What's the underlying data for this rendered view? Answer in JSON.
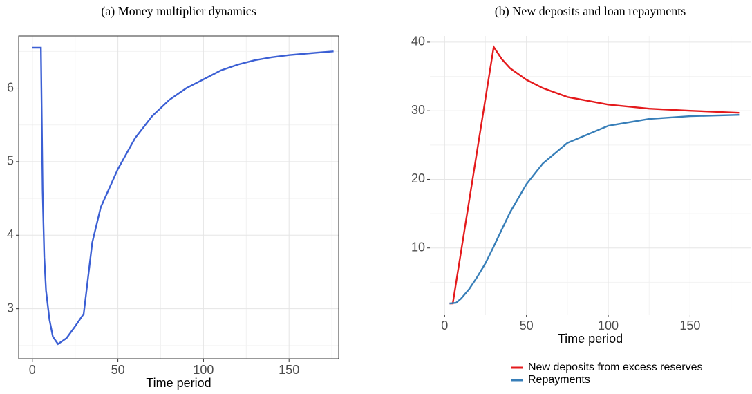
{
  "chart_data": [
    {
      "type": "line",
      "title": "(a) Money multiplier dynamics",
      "x_label": "Time period",
      "xlim": [
        -8,
        179
      ],
      "ylim": [
        2.32,
        6.71
      ],
      "xticks": [
        0,
        50,
        100,
        150
      ],
      "yticks": [
        3,
        4,
        5,
        6
      ],
      "x_minor_ticks": [
        25,
        75,
        125,
        175
      ],
      "y_minor_ticks": [
        2.5,
        3.5,
        4.5,
        5.5,
        6.5
      ],
      "grid": true,
      "frame": true,
      "series": [
        {
          "color": "#3b5fd4",
          "x": [
            0,
            5,
            6,
            7,
            8,
            10,
            12,
            15,
            20,
            25,
            30,
            35,
            40,
            50,
            60,
            70,
            80,
            90,
            100,
            110,
            120,
            130,
            140,
            150,
            160,
            170,
            176
          ],
          "values": [
            6.55,
            6.55,
            4.6,
            3.7,
            3.25,
            2.85,
            2.62,
            2.52,
            2.6,
            2.76,
            2.93,
            3.9,
            4.38,
            4.9,
            5.32,
            5.62,
            5.84,
            6.0,
            6.12,
            6.24,
            6.32,
            6.38,
            6.42,
            6.45,
            6.47,
            6.49,
            6.5
          ]
        }
      ]
    },
    {
      "type": "line",
      "title": "(b) New deposits and loan repayments",
      "x_label": "Time period",
      "xlim": [
        -9,
        187
      ],
      "ylim": [
        0.3,
        40.9
      ],
      "xticks": [
        0,
        50,
        100,
        150
      ],
      "yticks": [
        10,
        20,
        30,
        40
      ],
      "x_minor_ticks": [
        25,
        75,
        125,
        175
      ],
      "y_minor_ticks": [
        5,
        15,
        25,
        35
      ],
      "grid": true,
      "frame": false,
      "legend": "bottom",
      "series": [
        {
          "name": "New deposits from excess reserves",
          "color": "#e41a1c",
          "x": [
            3,
            5,
            30,
            35,
            40,
            50,
            60,
            75,
            100,
            125,
            150,
            180
          ],
          "values": [
            1.9,
            1.9,
            39.3,
            37.5,
            36.2,
            34.5,
            33.3,
            32.0,
            30.9,
            30.3,
            30.0,
            29.7
          ]
        },
        {
          "name": "Repayments",
          "color": "#377eb8",
          "x": [
            3,
            7,
            10,
            15,
            20,
            25,
            30,
            40,
            50,
            60,
            75,
            100,
            125,
            150,
            180
          ],
          "values": [
            1.9,
            2.0,
            2.6,
            4.0,
            5.8,
            7.8,
            10.2,
            15.2,
            19.3,
            22.3,
            25.3,
            27.8,
            28.8,
            29.2,
            29.4
          ]
        }
      ]
    }
  ]
}
